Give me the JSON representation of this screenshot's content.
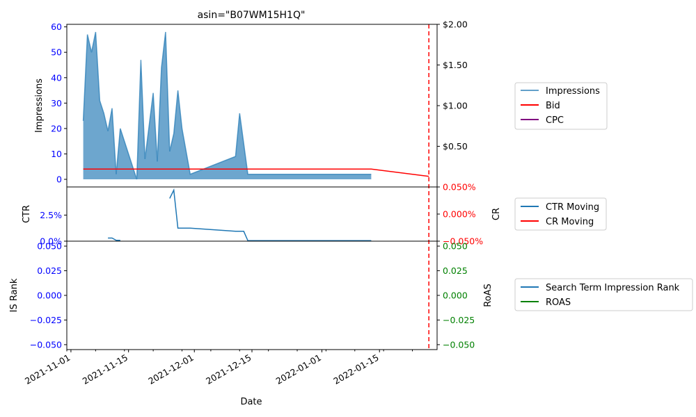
{
  "chart_data": [
    {
      "type": "area",
      "title": "asin=\"B07WM15H1Q\"",
      "ylabel": "Impressions",
      "ylim": [
        -3,
        61
      ],
      "yticks": [
        0,
        10,
        20,
        30,
        40,
        50,
        60
      ],
      "y2lim": [
        0,
        2.0
      ],
      "y2ticks": [
        0.5,
        1.0,
        1.5,
        2.0
      ],
      "y2ticklabels": [
        "$0.50",
        "$1.00",
        "$1.50",
        "$2.00"
      ],
      "series": [
        {
          "name": "Impressions",
          "color": "#1f77b4",
          "x": [
            "2021-11-04",
            "2021-11-05",
            "2021-11-06",
            "2021-11-07",
            "2021-11-08",
            "2021-11-09",
            "2021-11-10",
            "2021-11-11",
            "2021-11-12",
            "2021-11-13",
            "2021-11-17",
            "2021-11-18",
            "2021-11-19",
            "2021-11-21",
            "2021-11-22",
            "2021-11-23",
            "2021-11-24",
            "2021-11-25",
            "2021-11-26",
            "2021-11-27",
            "2021-11-28",
            "2021-11-30",
            "2021-12-11",
            "2021-12-12",
            "2021-12-14",
            "2022-01-13"
          ],
          "values": [
            23,
            57,
            50,
            58,
            31,
            26,
            19,
            28,
            2,
            20,
            0,
            47,
            8,
            34,
            7,
            44,
            58,
            11,
            18,
            35,
            20,
            2,
            9,
            26,
            2,
            2
          ]
        },
        {
          "name": "Bid",
          "color": "#ff0000",
          "axis": "right",
          "x": [
            "2021-11-04",
            "2022-01-13",
            "2022-01-27"
          ],
          "values": [
            0.22,
            0.22,
            0.13
          ]
        },
        {
          "name": "CPC",
          "color": "#800080",
          "axis": "right",
          "x": [],
          "values": []
        }
      ]
    },
    {
      "type": "line",
      "ylabel": "CTR",
      "ylim": [
        0,
        0.052
      ],
      "yticks": [
        0,
        0.025
      ],
      "yticklabels": [
        "0.0%",
        "2.5%"
      ],
      "y2label": "CR",
      "y2lim": [
        -0.05,
        0.05
      ],
      "y2ticks": [
        -0.05,
        0.0,
        0.05
      ],
      "y2ticklabels": [
        "−0.050%",
        "0.000%",
        "0.050%"
      ],
      "series": [
        {
          "name": "CTR Moving",
          "color": "#1f77b4",
          "segments": [
            {
              "x": [
                "2021-11-10",
                "2021-11-11",
                "2021-11-12",
                "2021-11-13"
              ],
              "values": [
                0.003,
                0.003,
                0.0008,
                0.0008
              ]
            },
            {
              "x": [
                "2021-11-25",
                "2021-11-26",
                "2021-11-27",
                "2021-11-30",
                "2021-12-11",
                "2021-12-13",
                "2021-12-14",
                "2022-01-13"
              ],
              "values": [
                0.041,
                0.049,
                0.0125,
                0.0125,
                0.0095,
                0.0095,
                0.0005,
                0.0005
              ]
            }
          ]
        },
        {
          "name": "CR Moving",
          "color": "#ff0000",
          "axis": "right",
          "x": [],
          "values": []
        }
      ]
    },
    {
      "type": "line",
      "ylabel": "IS Rank",
      "xlabel": "Date",
      "ylim": [
        -0.055,
        0.055
      ],
      "yticks": [
        -0.05,
        -0.025,
        0.0,
        0.025,
        0.05
      ],
      "yticklabels": [
        "−0.050",
        "−0.025",
        "0.000",
        "0.025",
        "0.050"
      ],
      "y2label": "RoAS",
      "y2lim": [
        -0.055,
        0.055
      ],
      "y2ticks": [
        -0.05,
        -0.025,
        0.0,
        0.025,
        0.05
      ],
      "y2ticklabels": [
        "−0.050",
        "−0.025",
        "0.000",
        "0.025",
        "0.050"
      ],
      "xlim": [
        "2021-10-31",
        "2022-01-29"
      ],
      "xticks": [
        "2021-11-01",
        "2021-11-15",
        "2021-12-01",
        "2021-12-15",
        "2022-01-01",
        "2022-01-15"
      ],
      "series": [
        {
          "name": "Search Term Impression Rank",
          "color": "#1f77b4",
          "x": [],
          "values": []
        },
        {
          "name": "ROAS",
          "color": "#008000",
          "axis": "right",
          "x": [],
          "values": []
        }
      ]
    }
  ],
  "reference_line": {
    "x": "2022-01-27",
    "color": "#ff0000",
    "style": "dashed"
  },
  "colors": {
    "left_axis": "#0000ff",
    "ctr_cr_right_axis": "#ff0000",
    "roas_right_axis": "#008000"
  }
}
